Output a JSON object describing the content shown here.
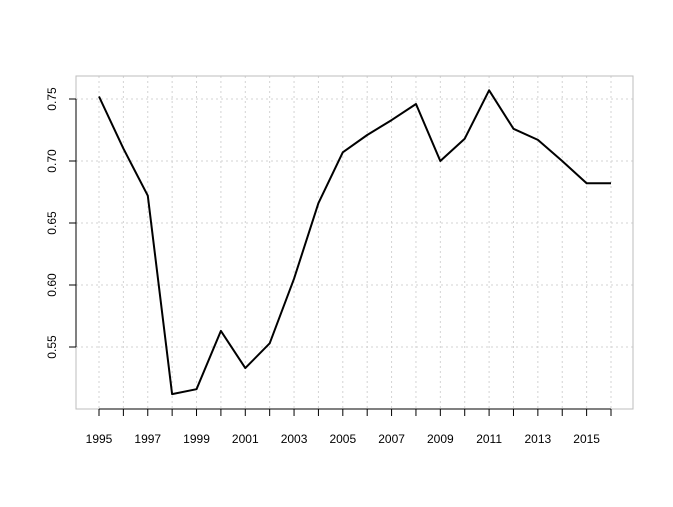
{
  "chart_data": {
    "type": "line",
    "title": "",
    "xlabel": "",
    "ylabel": "",
    "x": [
      1995,
      1996,
      1997,
      1998,
      1999,
      2000,
      2001,
      2002,
      2003,
      2004,
      2005,
      2006,
      2007,
      2008,
      2009,
      2010,
      2011,
      2012,
      2013,
      2014,
      2015,
      2016
    ],
    "series": [
      {
        "values": [
          0.752,
          0.71,
          0.672,
          0.512,
          0.516,
          0.563,
          0.533,
          0.553,
          0.605,
          0.666,
          0.707,
          0.721,
          0.733,
          0.746,
          0.7,
          0.718,
          0.757,
          0.726,
          0.717,
          0.7,
          0.682,
          0.682
        ]
      }
    ],
    "xlim": [
      1995,
      2016
    ],
    "ylim": [
      0.51,
      0.76
    ],
    "x_ticks": [
      1995,
      1996,
      1997,
      1998,
      1999,
      2000,
      2001,
      2002,
      2003,
      2004,
      2005,
      2006,
      2007,
      2008,
      2009,
      2010,
      2011,
      2012,
      2013,
      2014,
      2015,
      2016
    ],
    "x_tick_labels": [
      "1995",
      "",
      "1997",
      "",
      "1999",
      "",
      "2001",
      "",
      "2003",
      "",
      "2005",
      "",
      "2007",
      "",
      "2009",
      "",
      "2011",
      "",
      "2013",
      "",
      "2015",
      ""
    ],
    "y_ticks": [
      0.55,
      0.6,
      0.65,
      0.7,
      0.75
    ],
    "y_tick_labels": [
      "0.55",
      "0.60",
      "0.65",
      "0.70",
      "0.75"
    ],
    "grid": true,
    "legend": "none",
    "colors": {
      "line": "#000000",
      "grid": "#d3d3d3",
      "box": "#bdbdbd"
    }
  }
}
